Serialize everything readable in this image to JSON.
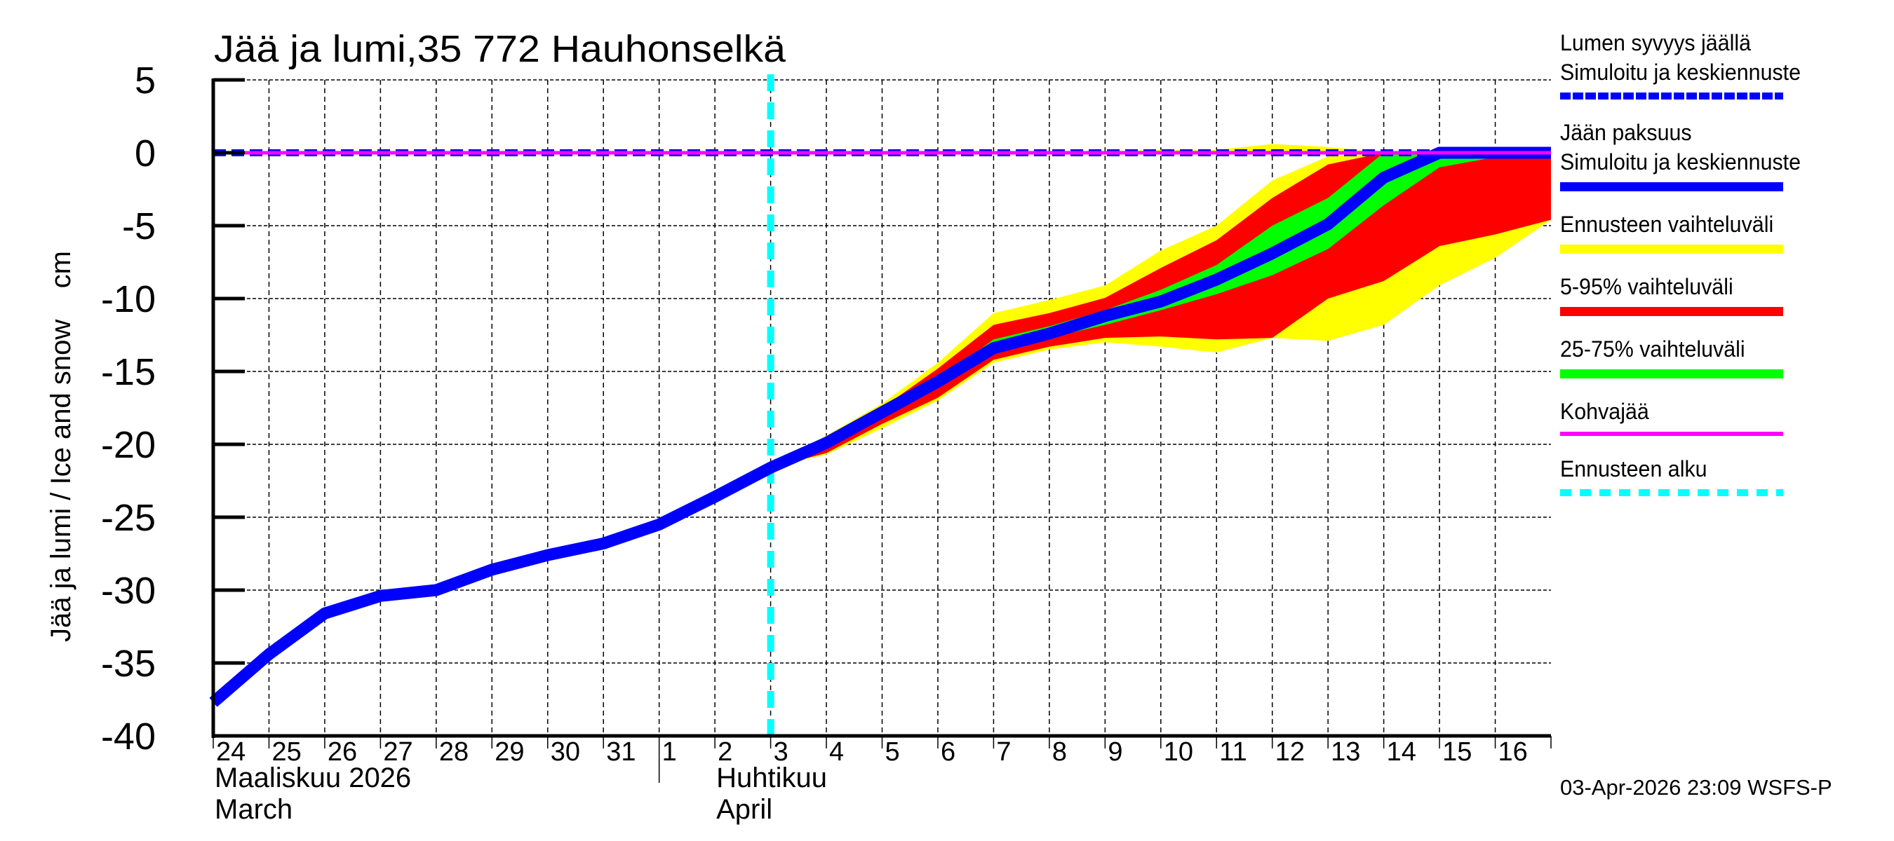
{
  "title": "Jää ja lumi,35 772 Hauhonselkä",
  "footer": "03-Apr-2026 23:09 WSFS-P",
  "axes": {
    "ylabel": "Jää ja lumi / Ice and snow    cm",
    "month_labels": [
      {
        "fi": "Maaliskuu 2026",
        "en": "March",
        "day_index": 0
      },
      {
        "fi": "Huhtikuu",
        "en": "April",
        "day_index": 9
      }
    ]
  },
  "legend": {
    "items": [
      {
        "label_lines": [
          "Lumen syvyys jäällä",
          "Simuloitu ja keskiennuste"
        ],
        "color": "#0000ff",
        "style": "dashed",
        "name": "snow-depth"
      },
      {
        "label_lines": [
          "Jään paksuus",
          "Simuloitu ja keskiennuste"
        ],
        "color": "#0000ff",
        "style": "solid",
        "name": "ice-thickness"
      },
      {
        "label_lines": [
          "Ennusteen vaihteluväli"
        ],
        "color": "#ffff00",
        "style": "solid",
        "name": "forecast-range"
      },
      {
        "label_lines": [
          "5-95% vaihteluväli"
        ],
        "color": "#ff0000",
        "style": "solid",
        "name": "range-5-95"
      },
      {
        "label_lines": [
          "25-75% vaihteluväli"
        ],
        "color": "#00ff00",
        "style": "solid",
        "name": "range-25-75"
      },
      {
        "label_lines": [
          "Kohvajää"
        ],
        "color": "#ff00ff",
        "style": "thin",
        "name": "slush-ice"
      },
      {
        "label_lines": [
          "Ennusteen alku"
        ],
        "color": "#00ffff",
        "style": "dotted",
        "name": "forecast-start"
      }
    ]
  },
  "chart_data": {
    "type": "area",
    "title": "Jää ja lumi,35 772 Hauhonselkä",
    "xlabel": "Maaliskuu 2026 / March — Huhtikuu / April",
    "ylabel": "Jää ja lumi / Ice and snow cm",
    "ylim": [
      -40,
      5
    ],
    "yticks": [
      5,
      0,
      -5,
      -10,
      -15,
      -20,
      -25,
      -30,
      -35,
      -40
    ],
    "xlim_days": [
      0,
      24
    ],
    "grid": true,
    "legend_position": "right",
    "x_tick_labels": [
      "24",
      "25",
      "26",
      "27",
      "28",
      "29",
      "30",
      "31",
      "1",
      "2",
      "3",
      "4",
      "5",
      "6",
      "7",
      "8",
      "9",
      "10",
      "11",
      "12",
      "13",
      "14",
      "15",
      "16"
    ],
    "forecast_start_day": 10,
    "colors": {
      "ice": "#0000ff",
      "snow": "#0000ff",
      "slush": "#ff00ff",
      "range_full": "#ffff00",
      "range_5_95": "#ff0000",
      "range_25_75": "#00ff00",
      "forecast_start": "#00ffff"
    },
    "series": [
      {
        "name": "Jään paksuus (simuloitu ja keskiennuste)",
        "x": [
          0,
          1,
          2,
          3,
          4,
          5,
          6,
          7,
          8,
          9,
          10,
          11,
          12,
          13,
          14,
          15,
          16,
          17,
          18,
          19,
          20,
          21,
          22,
          23,
          24
        ],
        "values": [
          -37.7,
          -34.4,
          -31.6,
          -30.4,
          -30.0,
          -28.6,
          -27.6,
          -26.8,
          -25.5,
          -23.6,
          -21.6,
          -19.9,
          -17.8,
          -15.7,
          -13.4,
          -12.4,
          -11.2,
          -10.2,
          -8.7,
          -6.9,
          -4.9,
          -1.7,
          0,
          0,
          0
        ]
      },
      {
        "name": "Lumen syvyys jäällä",
        "x": [
          0,
          24
        ],
        "values": [
          0,
          0
        ]
      },
      {
        "name": "Kohvajää",
        "x": [
          0,
          24
        ],
        "values": [
          0,
          0
        ]
      }
    ],
    "bands": [
      {
        "name": "Ennusteen vaihteluväli",
        "x": [
          10,
          11,
          12,
          13,
          14,
          15,
          16,
          17,
          18,
          19,
          20,
          21,
          22,
          23,
          24
        ],
        "upper": [
          -21.6,
          -19.4,
          -17.2,
          -14.4,
          -11.0,
          -10.1,
          -9.1,
          -6.7,
          -5.0,
          -1.9,
          -0.25,
          0,
          0,
          0,
          0
        ],
        "lower": [
          -21.6,
          -20.7,
          -18.9,
          -17.0,
          -14.4,
          -13.5,
          -13.0,
          -13.3,
          -13.7,
          -12.7,
          -12.9,
          -11.8,
          -9.1,
          -7.2,
          -4.6
        ]
      },
      {
        "name": "5-95% vaihteluväli",
        "x": [
          10,
          11,
          12,
          13,
          14,
          15,
          16,
          17,
          18,
          19,
          20,
          21,
          22,
          23,
          24
        ],
        "upper": [
          -21.6,
          -19.6,
          -17.5,
          -14.8,
          -11.8,
          -11.0,
          -9.95,
          -7.9,
          -6.0,
          -3.1,
          -0.8,
          0,
          0,
          0,
          0
        ],
        "lower": [
          -21.6,
          -20.6,
          -18.6,
          -16.8,
          -14.2,
          -13.3,
          -12.7,
          -12.6,
          -12.8,
          -12.7,
          -10.0,
          -8.8,
          -6.4,
          -5.6,
          -4.6
        ]
      },
      {
        "name": "25-75% vaihteluväli",
        "x": [
          10,
          11,
          12,
          13,
          14,
          15,
          16,
          17,
          18,
          19,
          20,
          21,
          22,
          23,
          24
        ],
        "upper": [
          -21.6,
          -19.9,
          -17.8,
          -15.6,
          -12.8,
          -11.9,
          -10.8,
          -9.4,
          -7.7,
          -5.0,
          -3.1,
          0,
          0,
          0,
          0
        ],
        "lower": [
          -21.6,
          -19.9,
          -17.8,
          -15.8,
          -13.6,
          -12.7,
          -11.8,
          -10.8,
          -9.7,
          -8.4,
          -6.6,
          -3.6,
          -1.0,
          -0.3,
          -0.2
        ]
      }
    ],
    "yellow_above_zero": {
      "x": [
        15,
        16,
        17,
        18,
        19,
        20,
        21,
        22,
        23,
        24
      ],
      "upper": [
        0,
        0.1,
        0.2,
        0.2,
        0.6,
        0.4,
        0,
        0,
        0.15,
        0
      ]
    }
  }
}
